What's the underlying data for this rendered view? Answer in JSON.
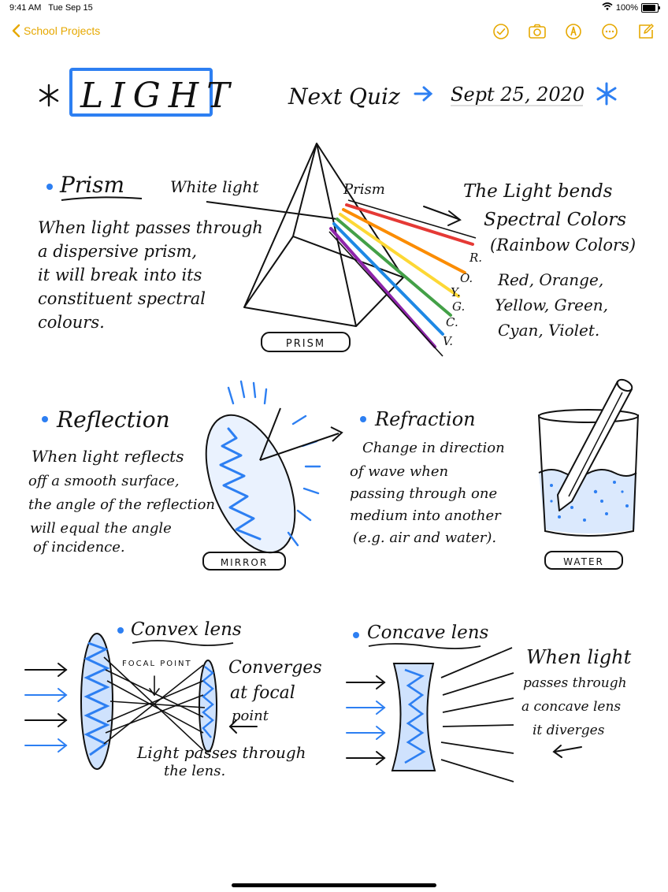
{
  "status_bar": {
    "time": "9:41 AM",
    "date": "Tue Sep 15",
    "battery_text": "100%",
    "battery_level": 1.0
  },
  "nav": {
    "back_label": "School Projects",
    "accent_color": "#e6a800",
    "tools": [
      "checkmark-circle-icon",
      "camera-icon",
      "markup-pen-icon",
      "more-ellipsis-icon",
      "compose-icon"
    ]
  },
  "note": {
    "title": "LIGHT",
    "quiz_label": "Next Quiz",
    "quiz_date": "Sept 25, 2020",
    "prism": {
      "heading": "Prism",
      "white_light": "White light",
      "prism_label": "Prism",
      "body_lines": [
        "When light passes through",
        "a dispersive prism,",
        "it will break into its",
        "constituent spectral",
        "colours."
      ],
      "box_label": "PRISM",
      "bends_lines": [
        "The Light bends",
        "Spectral Colors",
        "(Rainbow Colors)"
      ],
      "letters": [
        "R.",
        "O.",
        "Y.",
        "G.",
        "C.",
        "V."
      ],
      "colors_lines": [
        "Red, Orange,",
        "Yellow, Green,",
        "Cyan, Violet."
      ]
    },
    "reflection": {
      "heading": "Reflection",
      "body_lines": [
        "When light reflects",
        "off a smooth surface,",
        "the angle of the reflection",
        "will equal the angle",
        "of incidence."
      ],
      "box_label": "MIRROR"
    },
    "refraction": {
      "heading": "Refraction",
      "body_lines": [
        "Change in direction",
        "of wave when",
        "passing through one",
        "medium into another",
        "(e.g. air and water)."
      ],
      "box_label": "WATER"
    },
    "convex": {
      "heading": "Convex lens",
      "focal_label": "FOCAL POINT",
      "converges_lines": [
        "Converges",
        "at focal",
        "point"
      ],
      "passes_lines": [
        "Light passes through",
        "the lens."
      ]
    },
    "concave": {
      "heading": "Concave lens",
      "body_lines": [
        "When light",
        "passes through",
        "a concave lens",
        "it diverges"
      ]
    },
    "colors": {
      "ink": "#111111",
      "blue": "#2d7ff2",
      "red": "#e53935",
      "orange": "#fb8c00",
      "yellow": "#fdd835",
      "green": "#43a047",
      "cyan": "#1e88e5",
      "violet": "#8e24aa"
    }
  }
}
